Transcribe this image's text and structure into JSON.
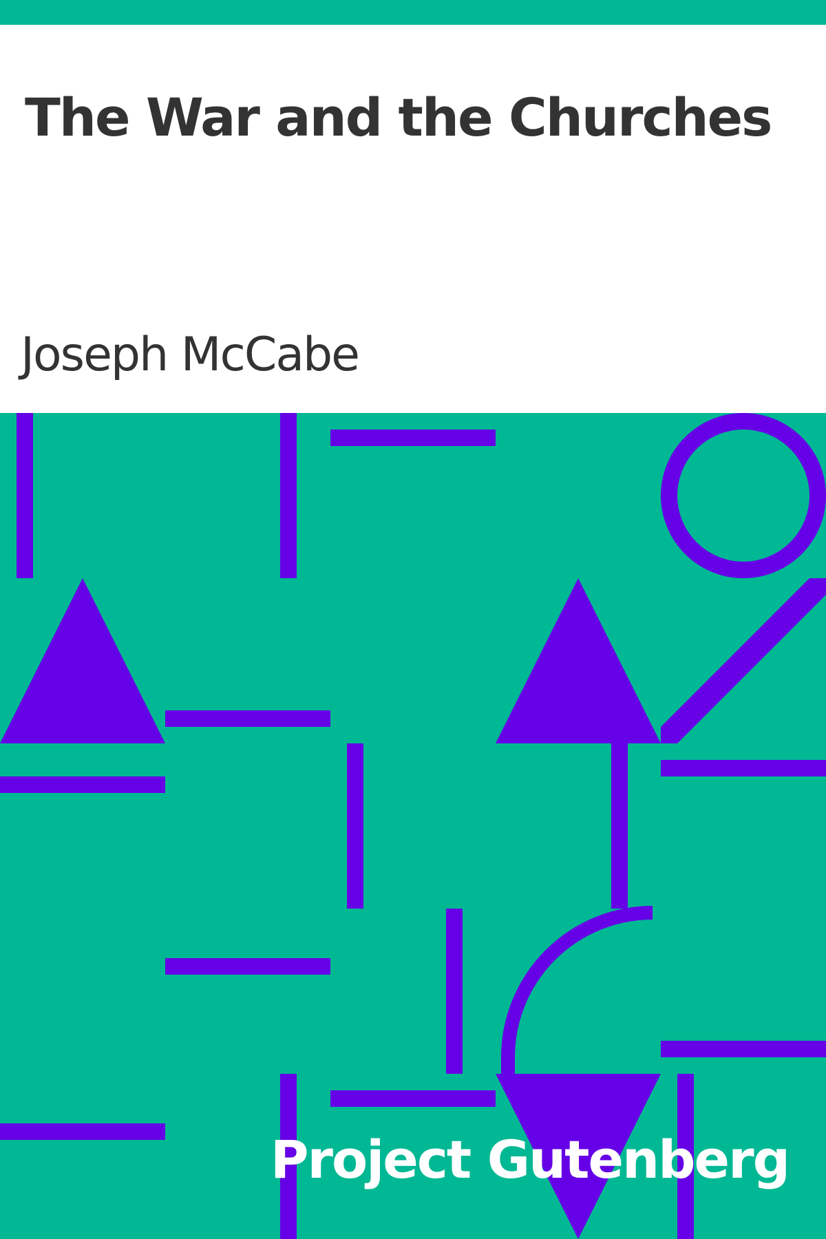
{
  "book": {
    "title": "The War and the Churches",
    "author": "Joseph McCabe",
    "publisher": "Project Gutenberg"
  },
  "colors": {
    "background": "#00b894",
    "shape": "#6600e6",
    "text_dark": "#333333",
    "text_light": "#ffffff"
  },
  "art": {
    "motifs": [
      "vertical-bar",
      "horizontal-bar",
      "circle-ring",
      "triangle-up",
      "triangle-down",
      "diagonal-bar",
      "quarter-arc"
    ]
  }
}
